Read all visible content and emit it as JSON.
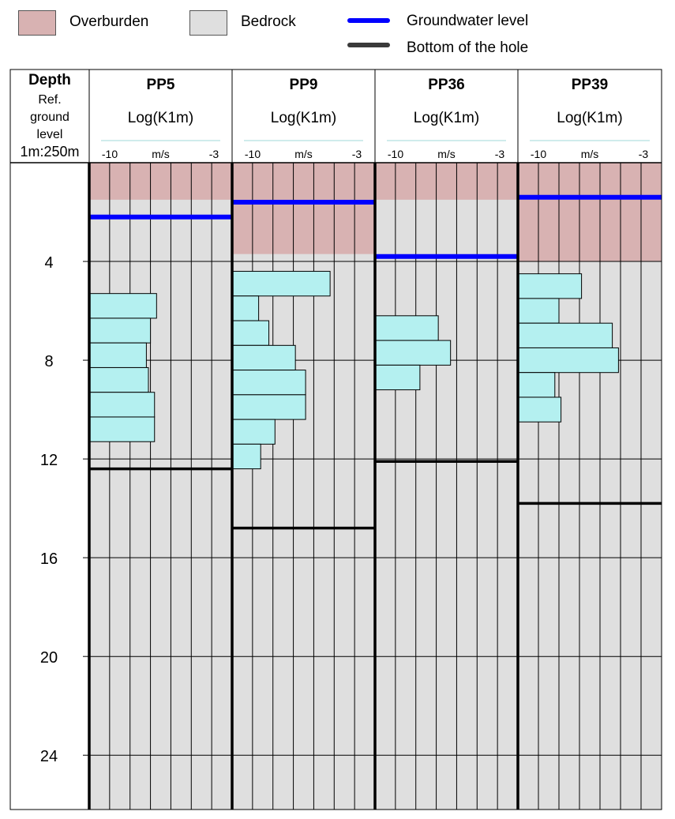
{
  "legend": {
    "overburden": {
      "label": "Overburden",
      "color": "#d8b2b2"
    },
    "bedrock": {
      "label": "Bedrock",
      "color": "#dfdfdf"
    },
    "groundwater": {
      "label": "Groundwater level",
      "color": "#0000ff"
    },
    "bottom": {
      "label": "Bottom of the hole",
      "color": "#3a3a3a"
    }
  },
  "depth_header": [
    "Depth",
    "Ref.",
    "ground",
    "level",
    "1m:250m"
  ],
  "chart_data": {
    "type": "bar",
    "orientation": "horizontal",
    "depth_axis": {
      "ticks": [
        "4",
        "8",
        "12",
        "16",
        "20",
        "24"
      ],
      "range": [
        0,
        26.2
      ],
      "inverted": true
    },
    "value_axis": {
      "unit": "m/s",
      "min_label": "-10",
      "max_label": "-3",
      "range": [
        -10,
        -3
      ]
    },
    "bar_color": "#b4f0f0",
    "panels": [
      {
        "name": "PP5",
        "subtitle": "Log(K1m)",
        "overburden_to": 1.5,
        "groundwater": 2.2,
        "bottom": 12.4,
        "intervals": [
          {
            "from": 5.3,
            "to": 6.3,
            "value": -6.7
          },
          {
            "from": 6.3,
            "to": 7.3,
            "value": -7.0
          },
          {
            "from": 7.3,
            "to": 8.3,
            "value": -7.2
          },
          {
            "from": 8.3,
            "to": 9.3,
            "value": -7.1
          },
          {
            "from": 9.3,
            "to": 10.3,
            "value": -6.8
          },
          {
            "from": 10.3,
            "to": 11.3,
            "value": -6.8
          }
        ]
      },
      {
        "name": "PP9",
        "subtitle": "Log(K1m)",
        "overburden_to": 3.7,
        "groundwater": 1.6,
        "bottom": 14.8,
        "intervals": [
          {
            "from": 4.4,
            "to": 5.4,
            "value": -5.2
          },
          {
            "from": 5.4,
            "to": 6.4,
            "value": -8.7
          },
          {
            "from": 6.4,
            "to": 7.4,
            "value": -8.2
          },
          {
            "from": 7.4,
            "to": 8.4,
            "value": -6.9
          },
          {
            "from": 8.4,
            "to": 9.4,
            "value": -6.4
          },
          {
            "from": 9.4,
            "to": 10.4,
            "value": -6.4
          },
          {
            "from": 10.4,
            "to": 11.4,
            "value": -7.9
          },
          {
            "from": 11.4,
            "to": 12.4,
            "value": -8.6
          }
        ]
      },
      {
        "name": "PP36",
        "subtitle": "Log(K1m)",
        "overburden_to": 1.5,
        "groundwater": 3.8,
        "bottom": 12.1,
        "intervals": [
          {
            "from": 6.2,
            "to": 7.2,
            "value": -6.9
          },
          {
            "from": 7.2,
            "to": 8.2,
            "value": -6.3
          },
          {
            "from": 8.2,
            "to": 9.2,
            "value": -7.8
          }
        ]
      },
      {
        "name": "PP39",
        "subtitle": "Log(K1m)",
        "overburden_to": 4.0,
        "groundwater": 1.4,
        "bottom": 13.8,
        "intervals": [
          {
            "from": 4.5,
            "to": 5.5,
            "value": -6.9
          },
          {
            "from": 5.5,
            "to": 6.5,
            "value": -8.0
          },
          {
            "from": 6.5,
            "to": 7.5,
            "value": -5.4
          },
          {
            "from": 7.5,
            "to": 8.5,
            "value": -5.1
          },
          {
            "from": 8.5,
            "to": 9.5,
            "value": -8.2
          },
          {
            "from": 9.5,
            "to": 10.5,
            "value": -7.9
          }
        ]
      }
    ]
  }
}
